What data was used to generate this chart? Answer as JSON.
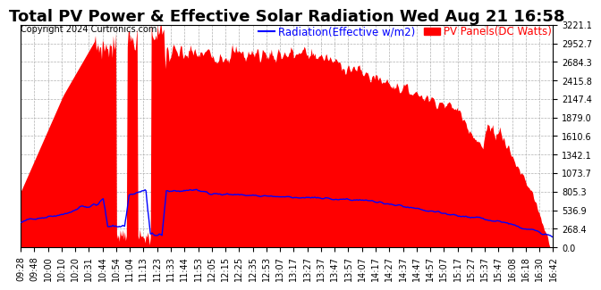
{
  "title": "Total PV Power & Effective Solar Radiation Wed Aug 21 16:58",
  "copyright": "Copyright 2024 Curtronics.com",
  "legend_radiation": "Radiation(Effective w/m2)",
  "legend_pv": "PV Panels(DC Watts)",
  "y_ticks": [
    0.0,
    268.4,
    536.9,
    805.3,
    1073.7,
    1342.1,
    1610.6,
    1879.0,
    2147.4,
    2415.8,
    2684.3,
    2952.7,
    3221.1
  ],
  "y_max": 3221.1,
  "y_min": 0.0,
  "color_pv": "#ff0000",
  "color_radiation": "#0000ff",
  "background_color": "#ffffff",
  "plot_bg_color": "#ffffff",
  "grid_color": "#b0b0b0",
  "title_fontsize": 13,
  "copyright_fontsize": 7,
  "legend_fontsize": 8.5,
  "tick_fontsize": 7,
  "x_tick_labels": [
    "09:28",
    "09:48",
    "10:00",
    "10:10",
    "10:20",
    "10:31",
    "10:44",
    "10:54",
    "11:04",
    "11:13",
    "11:23",
    "11:33",
    "11:44",
    "11:53",
    "12:05",
    "12:15",
    "12:25",
    "12:35",
    "12:53",
    "13:07",
    "13:17",
    "13:27",
    "13:37",
    "13:47",
    "13:57",
    "14:07",
    "14:17",
    "14:27",
    "14:37",
    "14:47",
    "14:57",
    "15:07",
    "15:17",
    "15:27",
    "15:37",
    "15:47",
    "16:08",
    "16:18",
    "16:30",
    "16:42"
  ]
}
